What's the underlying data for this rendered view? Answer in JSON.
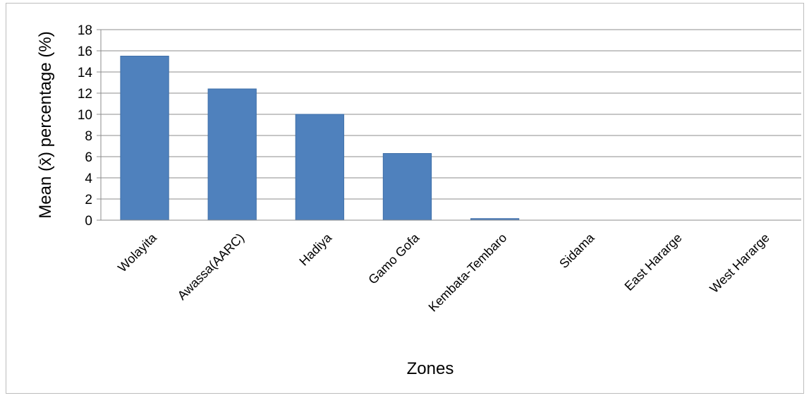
{
  "chart_data": {
    "type": "bar",
    "categories": [
      "Wolayita",
      "Awassa(AARC)",
      "Hadiya",
      "Gamo Gofa",
      "Kembata-Tembaro",
      "Sidama",
      "East Hararge",
      "West Hararge"
    ],
    "values": [
      15.5,
      12.4,
      10.0,
      6.3,
      0.15,
      0,
      0,
      0
    ],
    "title": "",
    "xlabel": "Zones",
    "ylabel": "Mean (x̄) percentage (%)",
    "ylim": [
      0,
      18
    ],
    "yticks": [
      0,
      2,
      4,
      6,
      8,
      10,
      12,
      14,
      16,
      18
    ],
    "grid": true,
    "legend": "none",
    "colors": {
      "bar": "#4f81bd",
      "bar_edge": "#3e6fa8",
      "grid": "#8c8c8c",
      "axis": "#8c8c8c"
    }
  }
}
